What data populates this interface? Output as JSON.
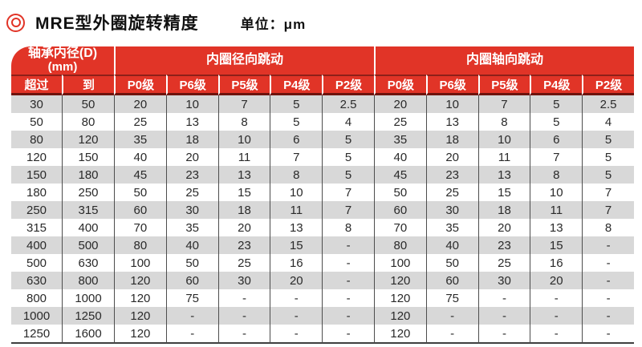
{
  "title": {
    "text": "MRE型外圈旋转精度",
    "unit_label": "单位：μm"
  },
  "table": {
    "header": {
      "bore_line1": "轴承内径(D)",
      "bore_line2": "(mm)",
      "radial_group": "内圈径向跳动",
      "axial_group": "内圈轴向跳动",
      "over_label": "超过",
      "to_label": "到",
      "grade_labels": [
        "P0级",
        "P6级",
        "P5级",
        "P4级",
        "P2级"
      ]
    },
    "rows": [
      [
        "30",
        "50",
        "20",
        "10",
        "7",
        "5",
        "2.5",
        "20",
        "10",
        "7",
        "5",
        "2.5"
      ],
      [
        "50",
        "80",
        "25",
        "13",
        "8",
        "5",
        "4",
        "25",
        "13",
        "8",
        "5",
        "4"
      ],
      [
        "80",
        "120",
        "35",
        "18",
        "10",
        "6",
        "5",
        "35",
        "18",
        "10",
        "6",
        "5"
      ],
      [
        "120",
        "150",
        "40",
        "20",
        "11",
        "7",
        "5",
        "40",
        "20",
        "11",
        "7",
        "5"
      ],
      [
        "150",
        "180",
        "45",
        "23",
        "13",
        "8",
        "5",
        "45",
        "23",
        "13",
        "8",
        "5"
      ],
      [
        "180",
        "250",
        "50",
        "25",
        "15",
        "10",
        "7",
        "50",
        "25",
        "15",
        "10",
        "7"
      ],
      [
        "250",
        "315",
        "60",
        "30",
        "18",
        "11",
        "7",
        "60",
        "30",
        "18",
        "11",
        "7"
      ],
      [
        "315",
        "400",
        "70",
        "35",
        "20",
        "13",
        "8",
        "70",
        "35",
        "20",
        "13",
        "8"
      ],
      [
        "400",
        "500",
        "80",
        "40",
        "23",
        "15",
        "-",
        "80",
        "40",
        "23",
        "15",
        "-"
      ],
      [
        "500",
        "630",
        "100",
        "50",
        "25",
        "16",
        "-",
        "100",
        "50",
        "25",
        "16",
        "-"
      ],
      [
        "630",
        "800",
        "120",
        "60",
        "30",
        "20",
        "-",
        "120",
        "60",
        "30",
        "20",
        "-"
      ],
      [
        "800",
        "1000",
        "120",
        "75",
        "-",
        "-",
        "-",
        "120",
        "75",
        "-",
        "-",
        "-"
      ],
      [
        "1000",
        "1250",
        "120",
        "-",
        "-",
        "-",
        "-",
        "120",
        "-",
        "-",
        "-",
        "-"
      ],
      [
        "1250",
        "1600",
        "120",
        "-",
        "-",
        "-",
        "-",
        "120",
        "-",
        "-",
        "-",
        "-"
      ]
    ]
  },
  "colors": {
    "header_red": "#e13427",
    "dark_line_1": "#8e2019",
    "dark_line_2": "#6e130d",
    "stripe_gray": "#d8d8d8",
    "divider_gray": "#4d4d4d",
    "body_text": "#2a2a2a"
  }
}
